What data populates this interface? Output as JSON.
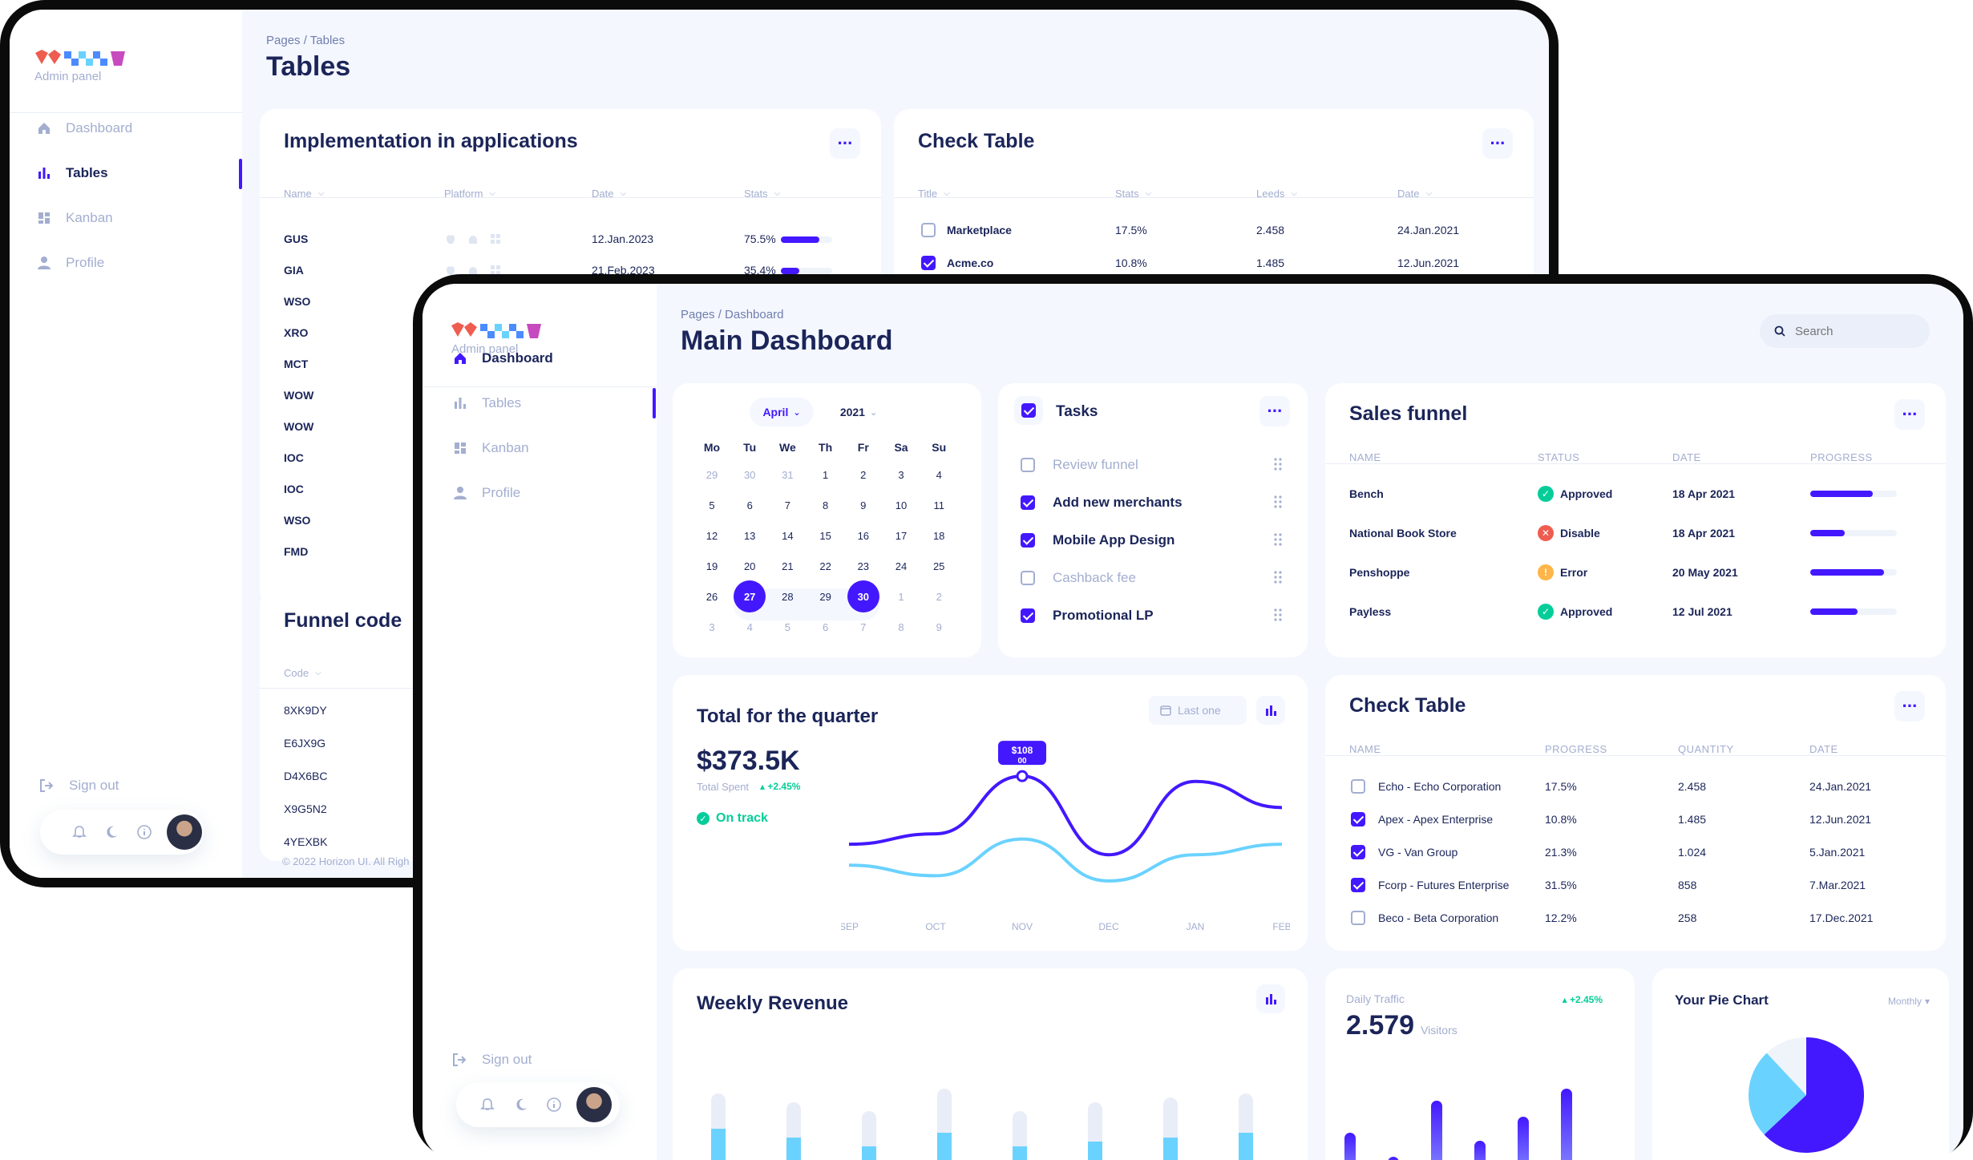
{
  "colors": {
    "brand": "#4318FF",
    "navy": "#1B2559",
    "muted": "#A3AED0",
    "bg": "#F4F7FE",
    "cyan": "#6AD2FF",
    "green": "#05CD99",
    "red": "#EE5D50",
    "yellow": "#FFB547"
  },
  "back": {
    "logo_sub": "Admin panel",
    "nav": [
      {
        "label": "Dashboard",
        "icon": "home-icon"
      },
      {
        "label": "Tables",
        "icon": "bar-chart-icon"
      },
      {
        "label": "Kanban",
        "icon": "grid-icon"
      },
      {
        "label": "Profile",
        "icon": "person-icon"
      }
    ],
    "sign_out": "Sign out",
    "breadcrumb": "Pages / Tables",
    "title": "Tables",
    "impl": {
      "title": "Implementation in applications",
      "headers": [
        "Name",
        "Platform",
        "Date",
        "Stats"
      ],
      "rows": [
        {
          "name": "GUS",
          "date": "12.Jan.2023",
          "stat": "75.5%",
          "progress": 75.5
        },
        {
          "name": "GIA",
          "date": "21.Feb.2023",
          "stat": "35.4%",
          "progress": 35.4
        },
        {
          "name": "WSO"
        },
        {
          "name": "XRO"
        },
        {
          "name": "MCT"
        },
        {
          "name": "WOW"
        },
        {
          "name": "WOW"
        },
        {
          "name": "IOC"
        },
        {
          "name": "IOC"
        },
        {
          "name": "WSO"
        },
        {
          "name": "FMD"
        }
      ]
    },
    "check": {
      "title": "Check Table",
      "headers": [
        "Title",
        "Stats",
        "Leeds",
        "Date"
      ],
      "rows": [
        {
          "title": "Marketplace",
          "stat": "17.5%",
          "leeds": "2.458",
          "date": "24.Jan.2021",
          "checked": false
        },
        {
          "title": "Acme.co",
          "stat": "10.8%",
          "leeds": "1.485",
          "date": "12.Jun.2021",
          "checked": true
        }
      ]
    },
    "funnel": {
      "title": "Funnel code",
      "header": "Code",
      "rows": [
        "8XK9DY",
        "E6JX9G",
        "D4X6BC",
        "X9G5N2",
        "4YEXBK"
      ]
    },
    "footer": "© 2022 Horizon UI. All Righ"
  },
  "front": {
    "logo_sub": "Admin panel",
    "nav": [
      {
        "label": "Dashboard",
        "icon": "home-icon"
      },
      {
        "label": "Tables",
        "icon": "bar-chart-icon"
      },
      {
        "label": "Kanban",
        "icon": "grid-icon"
      },
      {
        "label": "Profile",
        "icon": "person-icon"
      }
    ],
    "sign_out": "Sign out",
    "breadcrumb": "Pages / Dashboard",
    "title": "Main Dashboard",
    "search_placeholder": "Search",
    "calendar": {
      "month": "April",
      "year": "2021",
      "dow": [
        "Mo",
        "Tu",
        "We",
        "Th",
        "Fr",
        "Sa",
        "Su"
      ],
      "weeks": [
        [
          "29",
          "30",
          "31",
          "1",
          "2",
          "3",
          "4"
        ],
        [
          "5",
          "6",
          "7",
          "8",
          "9",
          "10",
          "11"
        ],
        [
          "12",
          "13",
          "14",
          "15",
          "16",
          "17",
          "18"
        ],
        [
          "19",
          "20",
          "21",
          "22",
          "23",
          "24",
          "25"
        ],
        [
          "26",
          "27",
          "28",
          "29",
          "30",
          "1",
          "2"
        ],
        [
          "3",
          "4",
          "5",
          "6",
          "7",
          "8",
          "9"
        ]
      ],
      "selected_start": "27",
      "selected_end": "30"
    },
    "tasks": {
      "title": "Tasks",
      "items": [
        {
          "label": "Review funnel",
          "checked": false
        },
        {
          "label": "Add new merchants",
          "checked": true
        },
        {
          "label": "Mobile App Design",
          "checked": true
        },
        {
          "label": "Cashback fee",
          "checked": false
        },
        {
          "label": "Promotional LP",
          "checked": true
        }
      ]
    },
    "sales": {
      "title": "Sales funnel",
      "headers": [
        "NAME",
        "STATUS",
        "DATE",
        "PROGRESS"
      ],
      "rows": [
        {
          "name": "Bench",
          "status": "Approved",
          "kind": "approved",
          "date": "18 Apr 2021",
          "progress": 72
        },
        {
          "name": "National Book Store",
          "status": "Disable",
          "kind": "disable",
          "date": "18 Apr 2021",
          "progress": 40
        },
        {
          "name": "Penshoppe",
          "status": "Error",
          "kind": "error",
          "date": "20 May 2021",
          "progress": 85
        },
        {
          "name": "Payless",
          "status": "Approved",
          "kind": "approved",
          "date": "12 Jul 2021",
          "progress": 55
        }
      ]
    },
    "quarter": {
      "title": "Total for the quarter",
      "amount": "$373.5K",
      "sub": "Total Spent",
      "change": "+2.45%",
      "track": "On track",
      "range_btn": "Last one",
      "tooltip": "$108",
      "tooltip2": "00"
    },
    "chart_data": {
      "type": "line",
      "x": [
        "SEP",
        "OCT",
        "NOV",
        "DEC",
        "JAN",
        "FEB"
      ],
      "series": [
        {
          "values": [
            45,
            55,
            110,
            35,
            105,
            80
          ]
        },
        {
          "values": [
            25,
            15,
            50,
            10,
            35,
            45
          ]
        }
      ],
      "ylim": [
        0,
        130
      ],
      "grid": false,
      "legend": "none"
    },
    "check": {
      "title": "Check Table",
      "headers": [
        "NAME",
        "PROGRESS",
        "QUANTITY",
        "DATE"
      ],
      "rows": [
        {
          "name": "Echo - Echo Corporation",
          "progress": "17.5%",
          "qty": "2.458",
          "date": "24.Jan.2021",
          "checked": false
        },
        {
          "name": "Apex - Apex Enterprise",
          "progress": "10.8%",
          "qty": "1.485",
          "date": "12.Jun.2021",
          "checked": true
        },
        {
          "name": "VG - Van Group",
          "progress": "21.3%",
          "qty": "1.024",
          "date": "5.Jan.2021",
          "checked": true
        },
        {
          "name": "Fcorp - Futures Enterprise",
          "progress": "31.5%",
          "qty": "858",
          "date": "7.Mar.2021",
          "checked": true
        },
        {
          "name": "Beco - Beta Corporation",
          "progress": "12.2%",
          "qty": "258",
          "date": "17.Dec.2021",
          "checked": false
        }
      ]
    },
    "weekly": {
      "title": "Weekly Revenue",
      "bars": [
        [
          95,
          55
        ],
        [
          85,
          45
        ],
        [
          75,
          35
        ],
        [
          100,
          50
        ],
        [
          75,
          35
        ],
        [
          85,
          40
        ],
        [
          90,
          45
        ],
        [
          95,
          50
        ]
      ]
    },
    "traffic": {
      "label": "Daily Traffic",
      "value": "2.579",
      "unit": "Visitors",
      "change": "+2.45%",
      "bars": [
        55,
        25,
        95,
        45,
        75,
        110
      ]
    },
    "pie": {
      "title": "Your Pie Chart",
      "select": "Monthly",
      "slices": [
        63,
        25,
        12
      ]
    }
  }
}
